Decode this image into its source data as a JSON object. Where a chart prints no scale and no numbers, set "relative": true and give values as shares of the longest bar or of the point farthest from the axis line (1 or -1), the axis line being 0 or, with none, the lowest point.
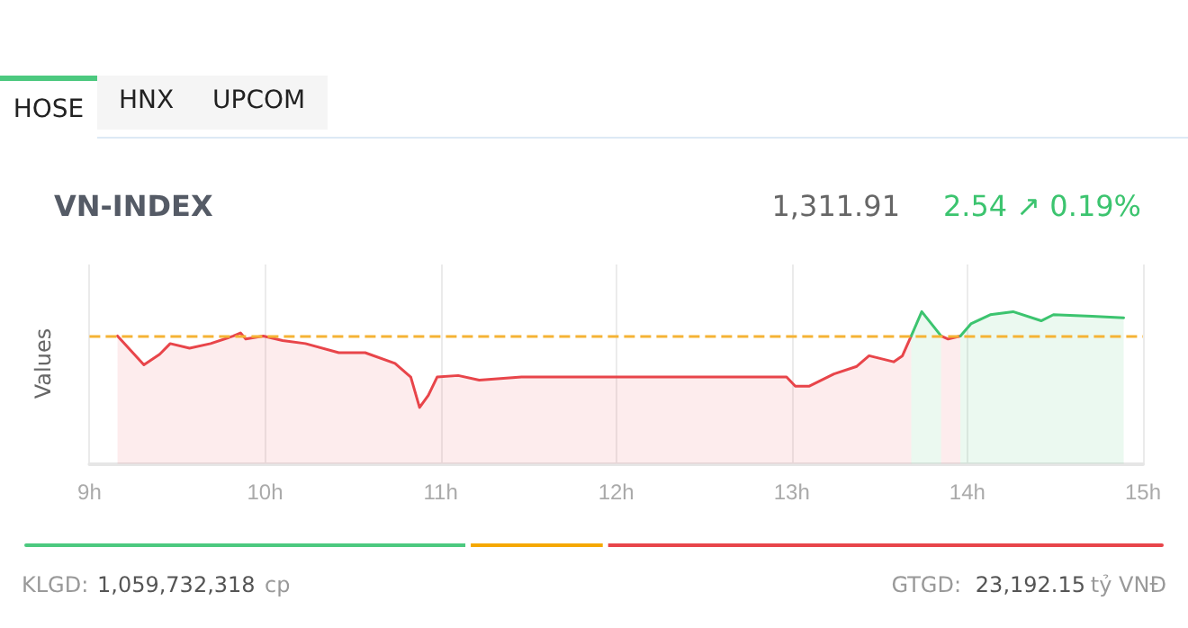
{
  "chart_data": [
    {
      "type": "area",
      "title": "VN-INDEX",
      "ylabel": "Values",
      "relative": true,
      "grid": "x",
      "marker": "none",
      "annotations": [
        "HOSE",
        "HNX",
        "UPCOM",
        "1,311.91",
        "2.54 ↗ 0.19%"
      ],
      "xlim": [
        9,
        15
      ],
      "xticks": [
        {
          "value": 9,
          "label": "9h"
        },
        {
          "value": 10,
          "label": "10h"
        },
        {
          "value": 11,
          "label": "11h"
        },
        {
          "value": 12,
          "label": "12h"
        },
        {
          "value": 13,
          "label": "13h"
        },
        {
          "value": 14,
          "label": "14h"
        },
        {
          "value": 15,
          "label": "15h"
        }
      ],
      "ref_lines": [
        {
          "axis": "y",
          "value": 0.84,
          "color": "#f5b335",
          "line_style": "dashed"
        }
      ],
      "series": [
        {
          "color": "#e8454a",
          "x": [
            9.16,
            9.31,
            9.4,
            9.46,
            9.57,
            9.69,
            9.82,
            9.86,
            9.89,
            9.99,
            10.1,
            10.23,
            10.42,
            10.57,
            10.74,
            10.83,
            10.88,
            10.93,
            10.98,
            11.1,
            11.22,
            11.46,
            11.87,
            12.97,
            13.02,
            13.1,
            13.24,
            13.37,
            13.44,
            13.58,
            13.63,
            13.68,
            13.76,
            13.85,
            13.89,
            13.96
          ],
          "values": [
            0.84,
            0.65,
            0.72,
            0.79,
            0.76,
            0.79,
            0.84,
            0.86,
            0.82,
            0.84,
            0.81,
            0.79,
            0.73,
            0.73,
            0.66,
            0.57,
            0.37,
            0.45,
            0.57,
            0.58,
            0.55,
            0.57,
            0.57,
            0.57,
            0.51,
            0.51,
            0.59,
            0.64,
            0.71,
            0.67,
            0.71,
            0.84,
            null,
            0.84,
            0.82,
            0.84
          ]
        },
        {
          "color": "#3cc46f",
          "x": [
            13.68,
            13.74,
            13.85,
            13.9,
            13.96,
            14.02,
            14.13,
            14.26,
            14.42,
            14.49,
            14.71,
            14.89
          ],
          "values": [
            0.84,
            1.0,
            0.84,
            null,
            0.84,
            0.92,
            0.98,
            1.0,
            0.94,
            0.98,
            0.97,
            0.96
          ]
        }
      ]
    },
    {
      "type": "bar",
      "orientation": "horizontal",
      "stacked": true,
      "relative": true,
      "tick_labels": false,
      "annotations": [
        "KLGD:",
        "1,059,732,318",
        "cp",
        "GTGD:",
        "23,192.15",
        "tỷ VNĐ"
      ],
      "categories": [
        null
      ],
      "series": [
        {
          "color": "#4cc97f",
          "values": [
            0.39
          ]
        },
        {
          "color": "#f5a800",
          "values": [
            0.12
          ]
        },
        {
          "color": "#e8454a",
          "values": [
            0.49
          ]
        }
      ]
    }
  ]
}
